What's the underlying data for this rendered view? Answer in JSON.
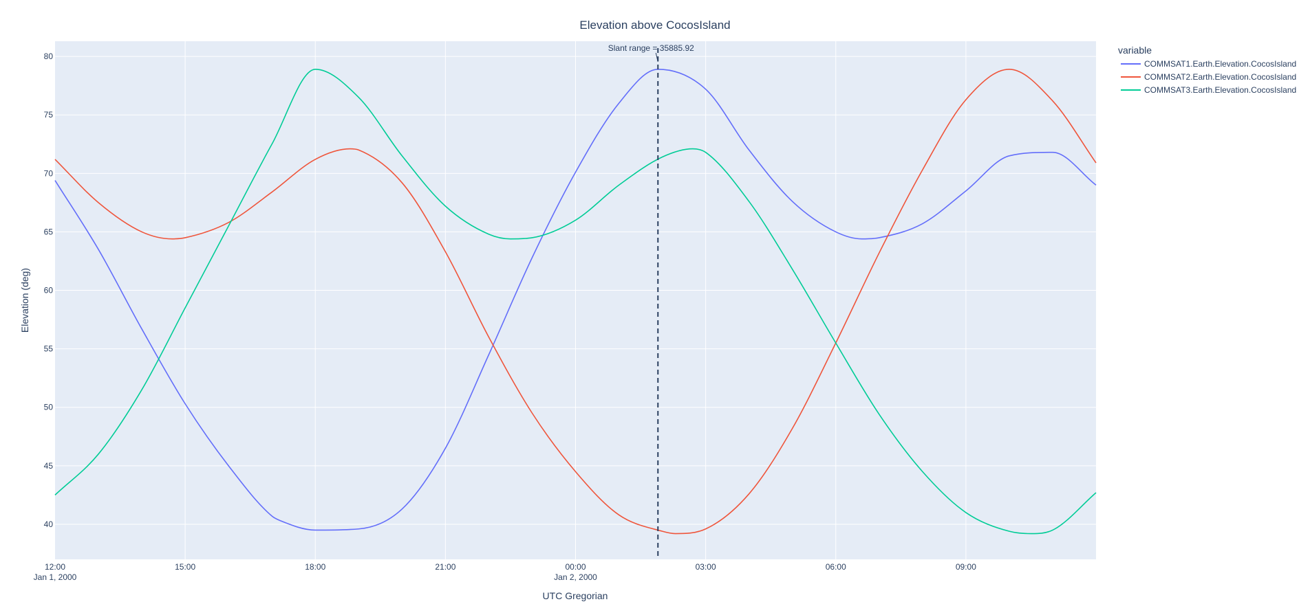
{
  "chart_data": {
    "type": "line",
    "title": "Elevation above CocosIsland",
    "xlabel": "UTC Gregorian",
    "ylabel": "Elevation (deg)",
    "x_unit": "hours since 12:00 Jan 1, 2000",
    "xlim": [
      0,
      24
    ],
    "ylim": [
      37,
      81.3
    ],
    "grid": true,
    "legend_position": "right",
    "legend_title": "variable",
    "x_ticks": [
      {
        "value": 0,
        "label": "12:00",
        "sublabel": "Jan 1, 2000"
      },
      {
        "value": 3,
        "label": "15:00",
        "sublabel": ""
      },
      {
        "value": 6,
        "label": "18:00",
        "sublabel": ""
      },
      {
        "value": 9,
        "label": "21:00",
        "sublabel": ""
      },
      {
        "value": 12,
        "label": "00:00",
        "sublabel": "Jan 2, 2000"
      },
      {
        "value": 15,
        "label": "03:00",
        "sublabel": ""
      },
      {
        "value": 18,
        "label": "06:00",
        "sublabel": ""
      },
      {
        "value": 21,
        "label": "09:00",
        "sublabel": ""
      }
    ],
    "y_ticks": [
      40,
      45,
      50,
      55,
      60,
      65,
      70,
      75,
      80
    ],
    "series": [
      {
        "name": "COMMSAT1.Earth.Elevation.CocosIsland",
        "color": "#636efa",
        "x": [
          0,
          1,
          2,
          3,
          4,
          5,
          5.2,
          6,
          7,
          8,
          9,
          10,
          11,
          12,
          13,
          13.9,
          15,
          16,
          17,
          18,
          18.6,
          19,
          20,
          21,
          22,
          23,
          24
        ],
        "y": [
          69.4,
          63.5,
          56.7,
          50.3,
          45.0,
          40.7,
          40.3,
          39.5,
          39.6,
          41.3,
          46.5,
          54.5,
          62.8,
          70.1,
          76.0,
          78.9,
          77.2,
          72.0,
          67.6,
          65.0,
          64.4,
          64.5,
          65.7,
          68.5,
          71.5,
          71.8,
          69.0
        ]
      },
      {
        "name": "COMMSAT2.Earth.Elevation.CocosIsland",
        "color": "#ef553b",
        "x": [
          0,
          1,
          2,
          2.7,
          3,
          4,
          5,
          6,
          6.8,
          7,
          8,
          9,
          10,
          11,
          12,
          13,
          14,
          14.3,
          15,
          16,
          17,
          18,
          19,
          20,
          21,
          22,
          23,
          24
        ],
        "y": [
          71.2,
          67.5,
          65.0,
          64.4,
          64.5,
          65.8,
          68.4,
          71.2,
          72.1,
          72.0,
          69.2,
          63.3,
          56.0,
          49.5,
          44.5,
          40.8,
          39.4,
          39.2,
          39.6,
          42.6,
          48.2,
          55.5,
          63.2,
          70.3,
          76.3,
          78.9,
          76.2,
          70.9
        ]
      },
      {
        "name": "COMMSAT3.Earth.Elevation.CocosIsland",
        "color": "#00cc96",
        "x": [
          0,
          1,
          2,
          3,
          4,
          5,
          6,
          7,
          8,
          9,
          10,
          10.5,
          11,
          12,
          13,
          14,
          14.7,
          15,
          16,
          17,
          18,
          19,
          20,
          21,
          22,
          22.5,
          23,
          24
        ],
        "y": [
          42.5,
          46.0,
          51.5,
          58.5,
          65.5,
          72.5,
          78.9,
          76.5,
          71.5,
          67.2,
          64.8,
          64.4,
          64.5,
          66.0,
          69.0,
          71.4,
          72.1,
          71.8,
          67.6,
          61.8,
          55.5,
          49.4,
          44.5,
          41.0,
          39.4,
          39.2,
          39.5,
          42.7
        ]
      }
    ],
    "vline": {
      "x": 13.9,
      "style": "dashed",
      "color": "#2a3f5f"
    },
    "annotation": {
      "text": "Slant range = 35885.92",
      "x": 13.9,
      "y": 80.3
    }
  }
}
